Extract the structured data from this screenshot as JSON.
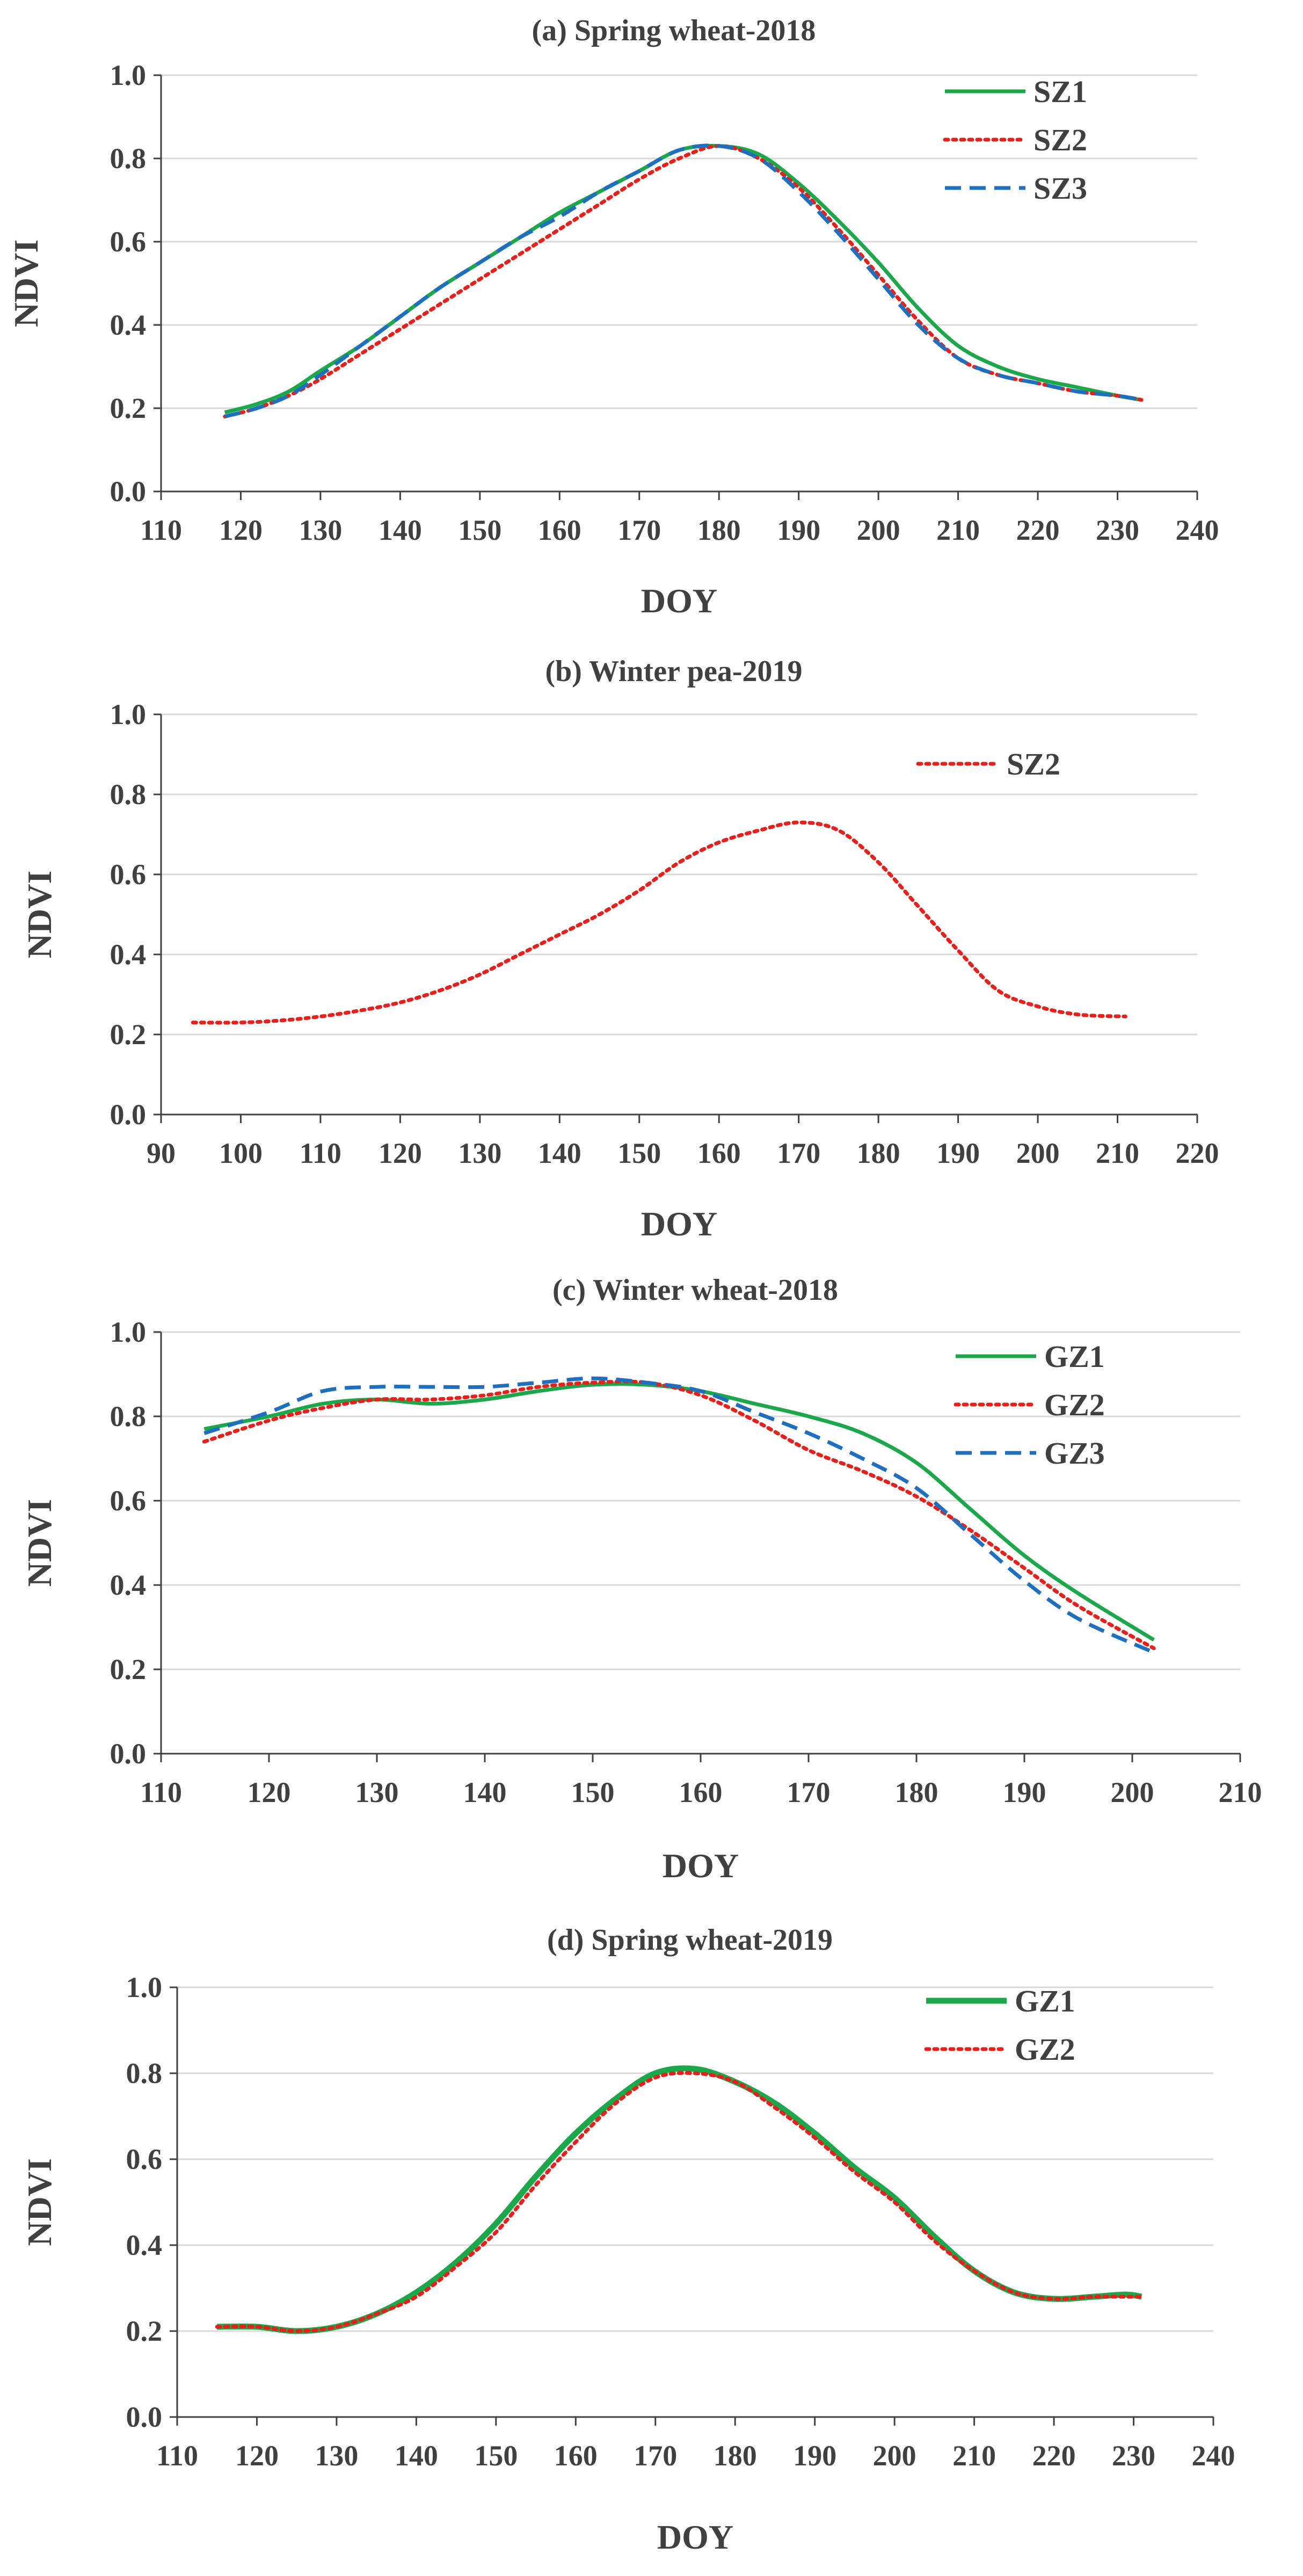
{
  "chart_data": [
    {
      "type": "line",
      "title": "(a) Spring wheat-2018",
      "xlabel": "DOY",
      "ylabel": "NDVI",
      "xlim": [
        110,
        240
      ],
      "ylim": [
        0.0,
        1.0
      ],
      "xticks": [
        "110",
        "120",
        "130",
        "140",
        "150",
        "160",
        "170",
        "180",
        "190",
        "200",
        "210",
        "220",
        "230",
        "240"
      ],
      "yticks": [
        "0.0",
        "0.2",
        "0.4",
        "0.6",
        "0.8",
        "1.0"
      ],
      "grid": "horizontal",
      "legend_position": "top-right",
      "series": [
        {
          "name": "SZ1",
          "color": "#1aa84a",
          "style": "solid",
          "x": [
            118,
            122,
            126,
            130,
            135,
            140,
            145,
            150,
            155,
            160,
            165,
            170,
            175,
            180,
            185,
            190,
            195,
            200,
            205,
            210,
            215,
            220,
            225,
            230,
            233
          ],
          "y": [
            0.19,
            0.21,
            0.24,
            0.29,
            0.35,
            0.42,
            0.49,
            0.55,
            0.61,
            0.67,
            0.72,
            0.77,
            0.82,
            0.83,
            0.81,
            0.74,
            0.65,
            0.55,
            0.44,
            0.35,
            0.3,
            0.27,
            0.25,
            0.23,
            0.22
          ]
        },
        {
          "name": "SZ2",
          "color": "#e8201c",
          "style": "dotted",
          "x": [
            118,
            122,
            126,
            130,
            135,
            140,
            145,
            150,
            155,
            160,
            165,
            170,
            175,
            180,
            185,
            190,
            195,
            200,
            205,
            210,
            215,
            220,
            225,
            230,
            233
          ],
          "y": [
            0.18,
            0.2,
            0.23,
            0.27,
            0.33,
            0.39,
            0.45,
            0.51,
            0.57,
            0.63,
            0.69,
            0.75,
            0.8,
            0.83,
            0.8,
            0.73,
            0.63,
            0.52,
            0.41,
            0.32,
            0.28,
            0.26,
            0.24,
            0.23,
            0.22
          ]
        },
        {
          "name": "SZ3",
          "color": "#1f6fc0",
          "style": "dashed",
          "x": [
            118,
            122,
            126,
            130,
            135,
            140,
            145,
            150,
            155,
            160,
            165,
            170,
            175,
            180,
            185,
            190,
            195,
            200,
            205,
            210,
            215,
            220,
            225,
            230,
            233
          ],
          "y": [
            0.18,
            0.2,
            0.23,
            0.28,
            0.35,
            0.42,
            0.49,
            0.55,
            0.61,
            0.66,
            0.72,
            0.77,
            0.82,
            0.83,
            0.8,
            0.72,
            0.62,
            0.51,
            0.4,
            0.32,
            0.28,
            0.26,
            0.24,
            0.23,
            0.22
          ]
        }
      ]
    },
    {
      "type": "line",
      "title": "(b) Winter pea-2019",
      "xlabel": "DOY",
      "ylabel": "NDVI",
      "xlim": [
        90,
        220
      ],
      "ylim": [
        0.0,
        1.0
      ],
      "xticks": [
        "90",
        "100",
        "110",
        "120",
        "130",
        "140",
        "150",
        "160",
        "170",
        "180",
        "190",
        "200",
        "210",
        "220"
      ],
      "yticks": [
        "0.0",
        "0.2",
        "0.4",
        "0.6",
        "0.8",
        "1.0"
      ],
      "grid": "horizontal",
      "legend_position": "top-right",
      "series": [
        {
          "name": "SZ2",
          "color": "#e8201c",
          "style": "dotted",
          "x": [
            94,
            100,
            105,
            110,
            115,
            120,
            125,
            130,
            135,
            140,
            145,
            150,
            155,
            160,
            165,
            170,
            175,
            180,
            185,
            190,
            195,
            200,
            205,
            211
          ],
          "y": [
            0.23,
            0.23,
            0.235,
            0.245,
            0.26,
            0.28,
            0.31,
            0.35,
            0.4,
            0.45,
            0.5,
            0.56,
            0.63,
            0.68,
            0.71,
            0.73,
            0.71,
            0.63,
            0.52,
            0.41,
            0.31,
            0.27,
            0.25,
            0.245
          ]
        }
      ]
    },
    {
      "type": "line",
      "title": "(c) Winter wheat-2018",
      "xlabel": "DOY",
      "ylabel": "NDVI",
      "xlim": [
        110,
        210
      ],
      "ylim": [
        0.0,
        1.0
      ],
      "xticks": [
        "110",
        "120",
        "130",
        "140",
        "150",
        "160",
        "170",
        "180",
        "190",
        "200",
        "210"
      ],
      "yticks": [
        "0.0",
        "0.2",
        "0.4",
        "0.6",
        "0.8",
        "1.0"
      ],
      "grid": "horizontal",
      "legend_position": "top-right",
      "series": [
        {
          "name": "GZ1",
          "color": "#1aa84a",
          "style": "solid",
          "x": [
            114,
            120,
            125,
            130,
            135,
            140,
            145,
            150,
            155,
            160,
            165,
            170,
            175,
            180,
            185,
            190,
            195,
            202
          ],
          "y": [
            0.77,
            0.8,
            0.83,
            0.84,
            0.83,
            0.84,
            0.86,
            0.875,
            0.875,
            0.86,
            0.83,
            0.8,
            0.76,
            0.69,
            0.58,
            0.47,
            0.38,
            0.27
          ]
        },
        {
          "name": "GZ2",
          "color": "#e8201c",
          "style": "dotted",
          "x": [
            114,
            120,
            125,
            130,
            135,
            140,
            145,
            150,
            155,
            160,
            165,
            170,
            175,
            180,
            185,
            190,
            195,
            202
          ],
          "y": [
            0.74,
            0.79,
            0.82,
            0.84,
            0.84,
            0.85,
            0.87,
            0.88,
            0.88,
            0.85,
            0.79,
            0.72,
            0.67,
            0.61,
            0.53,
            0.44,
            0.35,
            0.25
          ]
        },
        {
          "name": "GZ3",
          "color": "#1f6fc0",
          "style": "dashed",
          "x": [
            114,
            120,
            125,
            130,
            135,
            140,
            145,
            150,
            155,
            160,
            165,
            170,
            175,
            180,
            185,
            190,
            195,
            202
          ],
          "y": [
            0.76,
            0.81,
            0.86,
            0.87,
            0.87,
            0.87,
            0.88,
            0.89,
            0.88,
            0.86,
            0.81,
            0.76,
            0.7,
            0.63,
            0.52,
            0.41,
            0.32,
            0.24
          ]
        }
      ]
    },
    {
      "type": "line",
      "title": "(d) Spring wheat-2019",
      "xlabel": "DOY",
      "ylabel": "NDVI",
      "xlim": [
        110,
        240
      ],
      "ylim": [
        0.0,
        1.0
      ],
      "xticks": [
        "110",
        "120",
        "130",
        "140",
        "150",
        "160",
        "170",
        "180",
        "190",
        "200",
        "210",
        "220",
        "230",
        "240"
      ],
      "yticks": [
        "0.0",
        "0.2",
        "0.4",
        "0.6",
        "0.8",
        "1.0"
      ],
      "grid": "horizontal",
      "legend_position": "top-right",
      "series": [
        {
          "name": "GZ1",
          "color": "#1aa84a",
          "style": "solid",
          "x": [
            115,
            120,
            125,
            130,
            135,
            140,
            145,
            150,
            155,
            160,
            165,
            170,
            175,
            180,
            185,
            190,
            195,
            200,
            205,
            210,
            215,
            220,
            225,
            229,
            231
          ],
          "y": [
            0.21,
            0.21,
            0.2,
            0.21,
            0.24,
            0.29,
            0.36,
            0.45,
            0.56,
            0.66,
            0.74,
            0.8,
            0.81,
            0.78,
            0.73,
            0.66,
            0.58,
            0.51,
            0.42,
            0.34,
            0.29,
            0.275,
            0.28,
            0.285,
            0.28
          ]
        },
        {
          "name": "GZ2",
          "color": "#e8201c",
          "style": "dotted",
          "x": [
            115,
            120,
            125,
            130,
            135,
            140,
            145,
            150,
            155,
            160,
            165,
            170,
            175,
            180,
            185,
            190,
            195,
            200,
            205,
            210,
            215,
            220,
            225,
            229,
            231
          ],
          "y": [
            0.21,
            0.21,
            0.2,
            0.21,
            0.24,
            0.28,
            0.35,
            0.43,
            0.54,
            0.64,
            0.73,
            0.79,
            0.8,
            0.78,
            0.72,
            0.65,
            0.57,
            0.5,
            0.41,
            0.34,
            0.29,
            0.275,
            0.28,
            0.28,
            0.28
          ]
        }
      ]
    }
  ]
}
